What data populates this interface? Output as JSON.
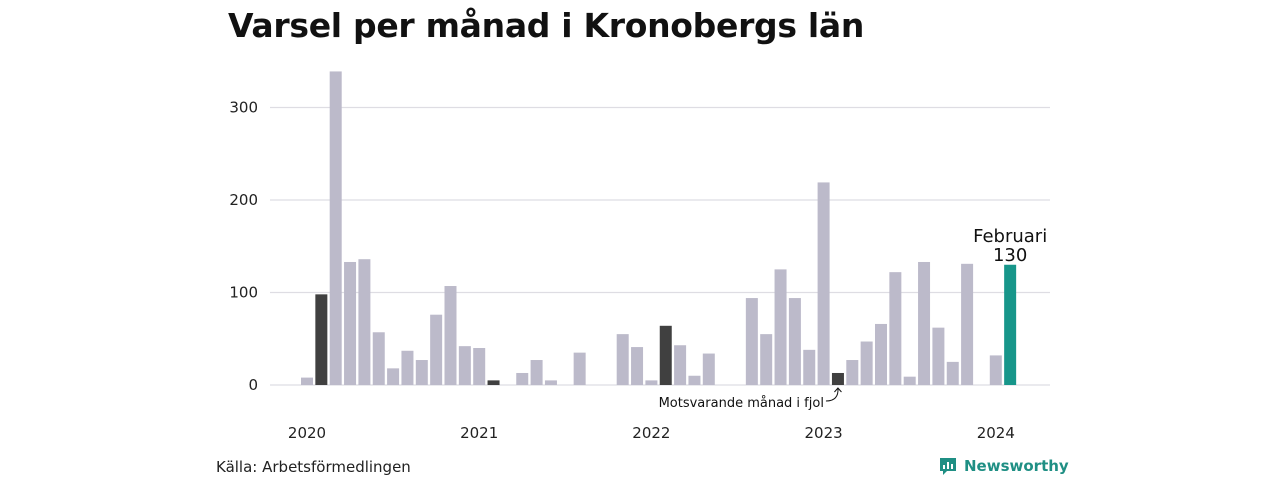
{
  "title": "Varsel per månad i Kronobergs län",
  "source": "Källa: Arbetsförmedlingen",
  "brand": {
    "name": "Newsworthy",
    "icon": "newsworthy-logo-icon",
    "color": "#1f8f84"
  },
  "chart_data": {
    "type": "bar",
    "title": "Varsel per månad i Kronobergs län",
    "xlabel": "",
    "ylabel": "",
    "ylim": [
      0,
      340
    ],
    "yticks": [
      0,
      100,
      200,
      300
    ],
    "grid": true,
    "colors": {
      "default": "#bcbaca",
      "same_month_prev_years": "#404040",
      "highlight": "#17968a"
    },
    "year_labels": [
      "2020",
      "2021",
      "2022",
      "2023",
      "2024"
    ],
    "months": [
      {
        "year": 2020,
        "month": 1,
        "value": 8,
        "kind": "default"
      },
      {
        "year": 2020,
        "month": 2,
        "value": 98,
        "kind": "same_month_prev_years"
      },
      {
        "year": 2020,
        "month": 3,
        "value": 339,
        "kind": "default"
      },
      {
        "year": 2020,
        "month": 4,
        "value": 133,
        "kind": "default"
      },
      {
        "year": 2020,
        "month": 5,
        "value": 136,
        "kind": "default"
      },
      {
        "year": 2020,
        "month": 6,
        "value": 57,
        "kind": "default"
      },
      {
        "year": 2020,
        "month": 7,
        "value": 18,
        "kind": "default"
      },
      {
        "year": 2020,
        "month": 8,
        "value": 37,
        "kind": "default"
      },
      {
        "year": 2020,
        "month": 9,
        "value": 27,
        "kind": "default"
      },
      {
        "year": 2020,
        "month": 10,
        "value": 76,
        "kind": "default"
      },
      {
        "year": 2020,
        "month": 11,
        "value": 107,
        "kind": "default"
      },
      {
        "year": 2020,
        "month": 12,
        "value": 42,
        "kind": "default"
      },
      {
        "year": 2021,
        "month": 1,
        "value": 40,
        "kind": "default"
      },
      {
        "year": 2021,
        "month": 2,
        "value": 5,
        "kind": "same_month_prev_years"
      },
      {
        "year": 2021,
        "month": 3,
        "value": 0,
        "kind": "default"
      },
      {
        "year": 2021,
        "month": 4,
        "value": 13,
        "kind": "default"
      },
      {
        "year": 2021,
        "month": 5,
        "value": 27,
        "kind": "default"
      },
      {
        "year": 2021,
        "month": 6,
        "value": 5,
        "kind": "default"
      },
      {
        "year": 2021,
        "month": 7,
        "value": 0,
        "kind": "default"
      },
      {
        "year": 2021,
        "month": 8,
        "value": 35,
        "kind": "default"
      },
      {
        "year": 2021,
        "month": 9,
        "value": 0,
        "kind": "default"
      },
      {
        "year": 2021,
        "month": 10,
        "value": 0,
        "kind": "default"
      },
      {
        "year": 2021,
        "month": 11,
        "value": 55,
        "kind": "default"
      },
      {
        "year": 2021,
        "month": 12,
        "value": 41,
        "kind": "default"
      },
      {
        "year": 2022,
        "month": 1,
        "value": 5,
        "kind": "default"
      },
      {
        "year": 2022,
        "month": 2,
        "value": 64,
        "kind": "same_month_prev_years"
      },
      {
        "year": 2022,
        "month": 3,
        "value": 43,
        "kind": "default"
      },
      {
        "year": 2022,
        "month": 4,
        "value": 10,
        "kind": "default"
      },
      {
        "year": 2022,
        "month": 5,
        "value": 34,
        "kind": "default"
      },
      {
        "year": 2022,
        "month": 6,
        "value": 0,
        "kind": "default"
      },
      {
        "year": 2022,
        "month": 7,
        "value": 0,
        "kind": "default"
      },
      {
        "year": 2022,
        "month": 8,
        "value": 94,
        "kind": "default"
      },
      {
        "year": 2022,
        "month": 9,
        "value": 55,
        "kind": "default"
      },
      {
        "year": 2022,
        "month": 10,
        "value": 125,
        "kind": "default"
      },
      {
        "year": 2022,
        "month": 11,
        "value": 94,
        "kind": "default"
      },
      {
        "year": 2022,
        "month": 12,
        "value": 38,
        "kind": "default"
      },
      {
        "year": 2023,
        "month": 1,
        "value": 219,
        "kind": "default"
      },
      {
        "year": 2023,
        "month": 2,
        "value": 13,
        "kind": "same_month_prev_years"
      },
      {
        "year": 2023,
        "month": 3,
        "value": 27,
        "kind": "default"
      },
      {
        "year": 2023,
        "month": 4,
        "value": 47,
        "kind": "default"
      },
      {
        "year": 2023,
        "month": 5,
        "value": 66,
        "kind": "default"
      },
      {
        "year": 2023,
        "month": 6,
        "value": 122,
        "kind": "default"
      },
      {
        "year": 2023,
        "month": 7,
        "value": 9,
        "kind": "default"
      },
      {
        "year": 2023,
        "month": 8,
        "value": 133,
        "kind": "default"
      },
      {
        "year": 2023,
        "month": 9,
        "value": 62,
        "kind": "default"
      },
      {
        "year": 2023,
        "month": 10,
        "value": 25,
        "kind": "default"
      },
      {
        "year": 2023,
        "month": 11,
        "value": 131,
        "kind": "default"
      },
      {
        "year": 2023,
        "month": 12,
        "value": 0,
        "kind": "default"
      },
      {
        "year": 2024,
        "month": 1,
        "value": 32,
        "kind": "default"
      },
      {
        "year": 2024,
        "month": 2,
        "value": 130,
        "kind": "highlight"
      }
    ],
    "highlight_label": {
      "month": "Februari",
      "value": "130"
    },
    "annotation": {
      "text": "Motsvarande månad i fjol"
    }
  }
}
